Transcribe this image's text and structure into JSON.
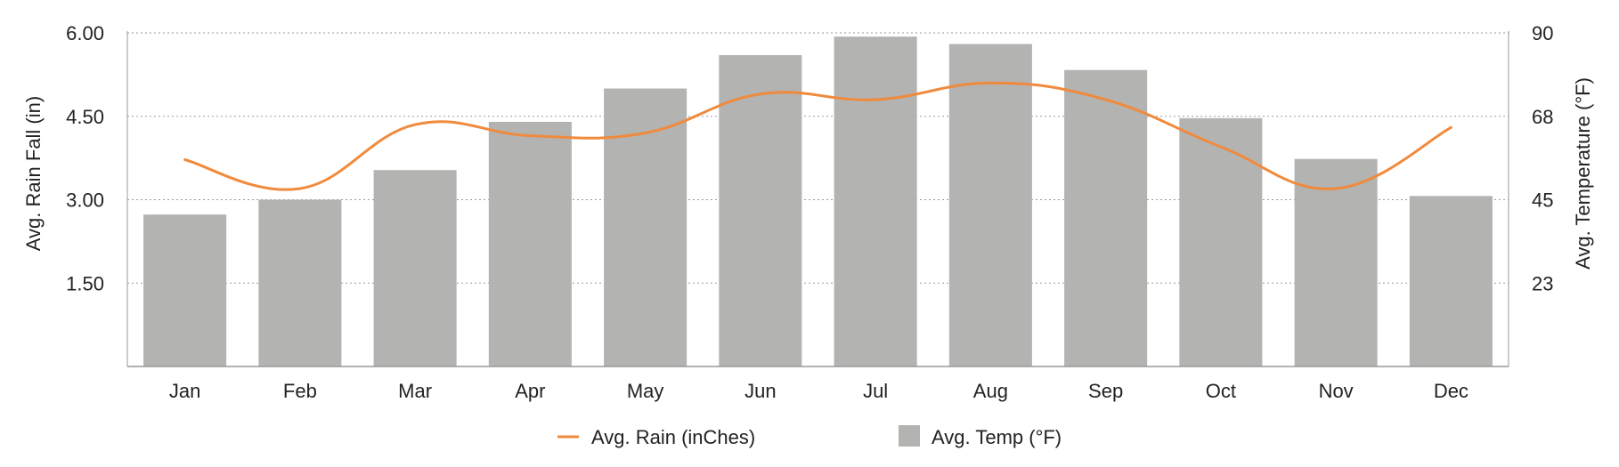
{
  "chart_data": {
    "type": "bar",
    "categories": [
      "Jan",
      "Feb",
      "Mar",
      "Apr",
      "May",
      "Jun",
      "Jul",
      "Aug",
      "Sep",
      "Oct",
      "Nov",
      "Dec"
    ],
    "series": [
      {
        "name": "Avg. Temp (°F)",
        "type": "bar",
        "axis": "right",
        "color": "#b3b3b2",
        "values": [
          41,
          45,
          53,
          66,
          75,
          84,
          89,
          87,
          80,
          67,
          56,
          46
        ]
      },
      {
        "name": "Avg. Rain (inChes)",
        "type": "line",
        "smooth": true,
        "axis": "left",
        "color": "#f08a3c",
        "values": [
          3.72,
          3.2,
          4.35,
          4.15,
          4.2,
          4.9,
          4.8,
          5.1,
          4.8,
          3.95,
          3.2,
          4.3
        ]
      }
    ],
    "y_left": {
      "label": "Avg. Rain Fall (in)",
      "range": [
        0,
        6
      ],
      "ticks": [
        "1.50",
        "3.00",
        "4.50",
        "6.00"
      ]
    },
    "y_right": {
      "label": "Avg. Temperature (°F)",
      "range": [
        0,
        90
      ],
      "ticks": [
        "23",
        "45",
        "68",
        "90"
      ]
    },
    "grid": "horizontal-dotted",
    "legend_position": "bottom-center"
  }
}
